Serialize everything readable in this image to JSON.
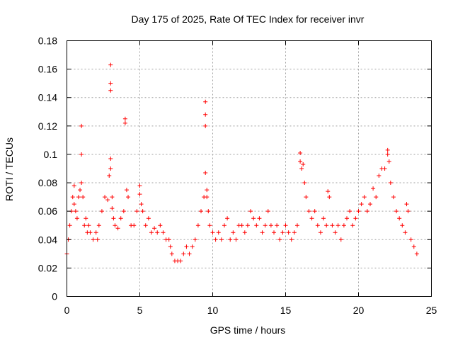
{
  "chart_data": {
    "type": "scatter",
    "title": "Day 175 of 2025, Rate Of TEC Index for receiver invr",
    "xlabel": "GPS time / hours",
    "ylabel": "ROTI / TECUs",
    "xlim": [
      0,
      25
    ],
    "ylim": [
      0,
      0.18
    ],
    "x_ticks": [
      0,
      5,
      10,
      15,
      20,
      25
    ],
    "x_tick_labels": [
      "0",
      "5",
      "10",
      "15",
      "20",
      "25"
    ],
    "y_ticks": [
      0,
      0.02,
      0.04,
      0.06,
      0.08,
      0.1,
      0.12,
      0.14,
      0.16,
      0.18
    ],
    "y_tick_labels": [
      "0",
      "0.02",
      "0.04",
      "0.06",
      "0.08",
      "0.1",
      "0.12",
      "0.14",
      "0.16",
      "0.18"
    ],
    "grid": true,
    "marker": "+",
    "color": "#ff0000",
    "series": [
      {
        "name": "ROTI",
        "x": [
          0.0,
          0.1,
          0.2,
          0.3,
          0.4,
          0.5,
          0.5,
          0.6,
          0.7,
          0.8,
          0.9,
          1.0,
          1.0,
          1.0,
          1.1,
          1.2,
          1.3,
          1.4,
          1.5,
          1.6,
          1.8,
          2.0,
          2.1,
          2.2,
          2.4,
          2.6,
          2.8,
          2.9,
          3.0,
          3.0,
          3.0,
          3.0,
          3.0,
          3.1,
          3.1,
          3.2,
          3.3,
          3.5,
          3.7,
          3.9,
          4.0,
          4.0,
          4.1,
          4.2,
          4.4,
          4.6,
          4.8,
          5.0,
          5.0,
          5.1,
          5.2,
          5.4,
          5.6,
          5.8,
          6.0,
          6.2,
          6.4,
          6.6,
          6.8,
          7.0,
          7.1,
          7.2,
          7.4,
          7.6,
          7.8,
          8.0,
          8.2,
          8.4,
          8.6,
          8.8,
          9.0,
          9.2,
          9.4,
          9.5,
          9.5,
          9.5,
          9.5,
          9.6,
          9.6,
          9.7,
          9.8,
          10.0,
          10.2,
          10.4,
          10.6,
          10.8,
          11.0,
          11.2,
          11.4,
          11.6,
          11.8,
          12.0,
          12.2,
          12.4,
          12.6,
          12.8,
          13.0,
          13.2,
          13.4,
          13.6,
          13.8,
          14.0,
          14.2,
          14.4,
          14.6,
          14.8,
          15.0,
          15.2,
          15.4,
          15.6,
          15.8,
          16.0,
          16.0,
          16.1,
          16.2,
          16.3,
          16.4,
          16.6,
          16.8,
          17.0,
          17.2,
          17.4,
          17.6,
          17.8,
          17.9,
          18.0,
          18.2,
          18.4,
          18.6,
          18.8,
          19.0,
          19.2,
          19.4,
          19.6,
          19.8,
          20.0,
          20.2,
          20.4,
          20.6,
          20.8,
          21.0,
          21.2,
          21.4,
          21.6,
          21.8,
          22.0,
          22.0,
          22.1,
          22.2,
          22.4,
          22.6,
          22.8,
          23.0,
          23.2,
          23.3,
          23.4,
          23.6,
          23.8,
          24.0
        ],
        "y": [
          0.03,
          0.04,
          0.05,
          0.06,
          0.07,
          0.065,
          0.078,
          0.06,
          0.055,
          0.07,
          0.075,
          0.12,
          0.1,
          0.08,
          0.07,
          0.05,
          0.055,
          0.045,
          0.05,
          0.045,
          0.04,
          0.045,
          0.04,
          0.05,
          0.06,
          0.07,
          0.068,
          0.085,
          0.163,
          0.15,
          0.145,
          0.097,
          0.09,
          0.062,
          0.07,
          0.055,
          0.05,
          0.048,
          0.055,
          0.06,
          0.125,
          0.122,
          0.075,
          0.07,
          0.05,
          0.05,
          0.06,
          0.078,
          0.072,
          0.065,
          0.06,
          0.05,
          0.055,
          0.045,
          0.048,
          0.045,
          0.05,
          0.045,
          0.04,
          0.04,
          0.035,
          0.03,
          0.025,
          0.025,
          0.025,
          0.03,
          0.035,
          0.03,
          0.035,
          0.04,
          0.05,
          0.06,
          0.07,
          0.137,
          0.128,
          0.12,
          0.087,
          0.075,
          0.07,
          0.06,
          0.05,
          0.045,
          0.04,
          0.045,
          0.04,
          0.05,
          0.055,
          0.04,
          0.045,
          0.04,
          0.05,
          0.05,
          0.045,
          0.05,
          0.06,
          0.055,
          0.05,
          0.055,
          0.045,
          0.05,
          0.06,
          0.05,
          0.045,
          0.05,
          0.04,
          0.045,
          0.05,
          0.045,
          0.04,
          0.045,
          0.05,
          0.101,
          0.095,
          0.09,
          0.093,
          0.08,
          0.07,
          0.06,
          0.055,
          0.06,
          0.05,
          0.045,
          0.055,
          0.05,
          0.074,
          0.07,
          0.05,
          0.045,
          0.05,
          0.04,
          0.05,
          0.055,
          0.06,
          0.05,
          0.055,
          0.06,
          0.065,
          0.07,
          0.06,
          0.065,
          0.076,
          0.07,
          0.085,
          0.09,
          0.09,
          0.103,
          0.1,
          0.095,
          0.08,
          0.07,
          0.06,
          0.055,
          0.05,
          0.045,
          0.065,
          0.06,
          0.04,
          0.035,
          0.03
        ]
      }
    ]
  }
}
